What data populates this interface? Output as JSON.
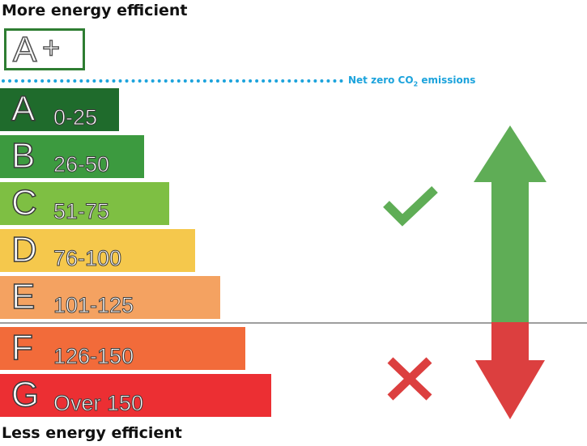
{
  "headings": {
    "top": "More energy efficient",
    "bottom": "Less energy efficient"
  },
  "aplus": {
    "letter": "A",
    "plus": "+"
  },
  "net_zero": {
    "prefix": "Net zero CO",
    "subscript": "2",
    "suffix": " emissions",
    "color": "#1ca3dc"
  },
  "bands": [
    {
      "letter": "A",
      "range": "0-25",
      "color": "#1f6b2c"
    },
    {
      "letter": "B",
      "range": "26-50",
      "color": "#3c9a3f"
    },
    {
      "letter": "C",
      "range": "51-75",
      "color": "#7ebf43"
    },
    {
      "letter": "D",
      "range": "76-100",
      "color": "#f5c84c"
    },
    {
      "letter": "E",
      "range": "101-125",
      "color": "#f4a261"
    },
    {
      "letter": "F",
      "range": "126-150",
      "color": "#f26b3a"
    },
    {
      "letter": "G",
      "range": "Over 150",
      "color": "#ec2f33"
    }
  ],
  "icons": {
    "check": "check-icon",
    "cross": "cross-icon",
    "arrow": "double-arrow-icon"
  },
  "colors": {
    "good": "#5fad56",
    "bad": "#dc3f3f"
  }
}
